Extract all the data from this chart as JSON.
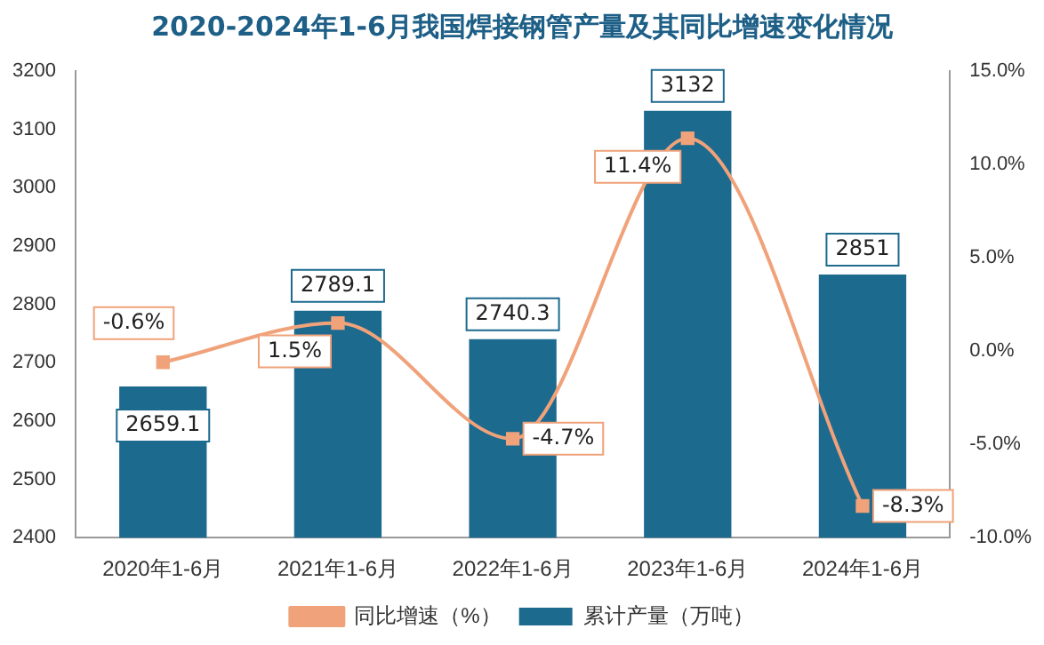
{
  "chart_data": {
    "type": "bar",
    "title": "2020-2024年1-6月我国焊接钢管产量及其同比增速变化情况",
    "categories": [
      "2020年1-6月",
      "2021年1-6月",
      "2022年1-6月",
      "2023年1-6月",
      "2024年1-6月"
    ],
    "series": [
      {
        "name": "累计产量（万吨）",
        "color": "#1d6a8f",
        "values": [
          2659.1,
          2789.1,
          2740.3,
          3132,
          2851
        ],
        "value_labels": [
          "2659.1",
          "2789.1",
          "2740.3",
          "3132",
          "2851"
        ]
      },
      {
        "name": "同比增速（%）",
        "type": "line",
        "axis": "y2",
        "color": "#f0a27a",
        "marker": "square",
        "values": [
          -0.6,
          1.5,
          -4.7,
          11.4,
          -8.3
        ],
        "value_labels": [
          "-0.6%",
          "1.5%",
          "-4.7%",
          "11.4%",
          "-8.3%"
        ]
      }
    ],
    "ylim": [
      2400,
      3200
    ],
    "yticks": [
      2400,
      2500,
      2600,
      2700,
      2800,
      2900,
      3000,
      3100,
      3200
    ],
    "y2lim": [
      -10,
      15
    ],
    "y2ticks": [
      {
        "value": -10,
        "label": "-10.0%"
      },
      {
        "value": -5,
        "label": "-5.0%"
      },
      {
        "value": 0,
        "label": "0.0%"
      },
      {
        "value": 5,
        "label": "5.0%"
      },
      {
        "value": 10,
        "label": "10.0%"
      },
      {
        "value": 15,
        "label": "15.0%"
      }
    ],
    "grid": false,
    "legend": "bottom"
  }
}
